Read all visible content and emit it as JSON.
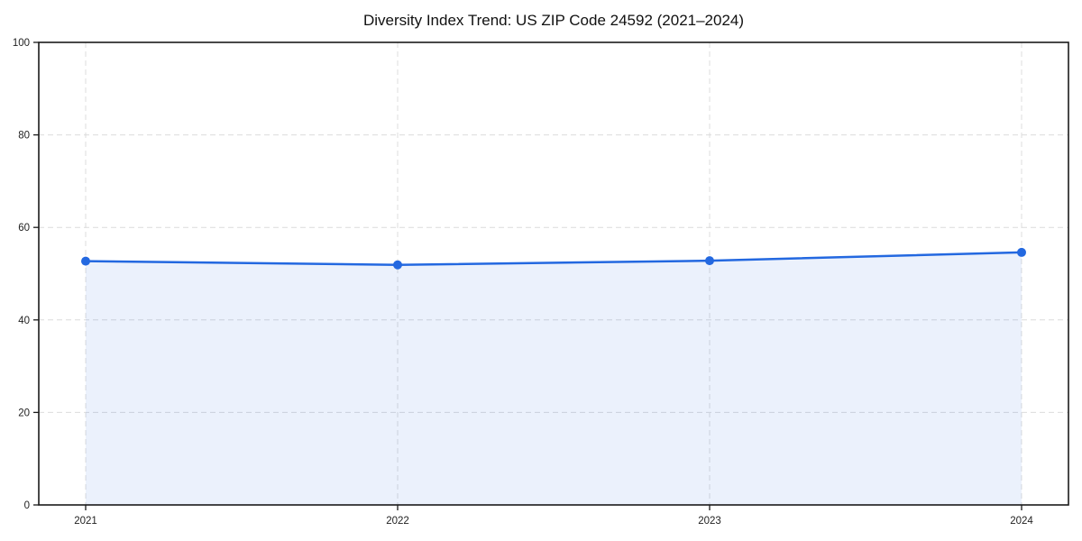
{
  "title": "Diversity Index Trend: US ZIP Code 24592 (2021–2024)",
  "chart_data": {
    "type": "line",
    "title": "Diversity Index Trend: US ZIP Code 24592 (2021–2024)",
    "categories": [
      "2021",
      "2022",
      "2023",
      "2024"
    ],
    "series": [
      {
        "name": "Diversity Index",
        "values": [
          52.7,
          51.9,
          52.8,
          54.6
        ]
      }
    ],
    "xlabel": "",
    "ylabel": "",
    "ylim": [
      0,
      100
    ],
    "yticks": [
      0,
      20,
      40,
      60,
      80,
      100
    ],
    "grid": "both-dashed",
    "legend": false,
    "area_fill": true,
    "marker": "circle",
    "colors": {
      "line": "#2368e0",
      "marker": "#2368e0",
      "area_fill": "#2368e0",
      "area_fill_opacity": 0.09,
      "gridline": "#dcdcdc",
      "spine": "#1a1a1a",
      "tick_text": "#222222",
      "title_text": "#111111",
      "background": "#ffffff"
    }
  }
}
